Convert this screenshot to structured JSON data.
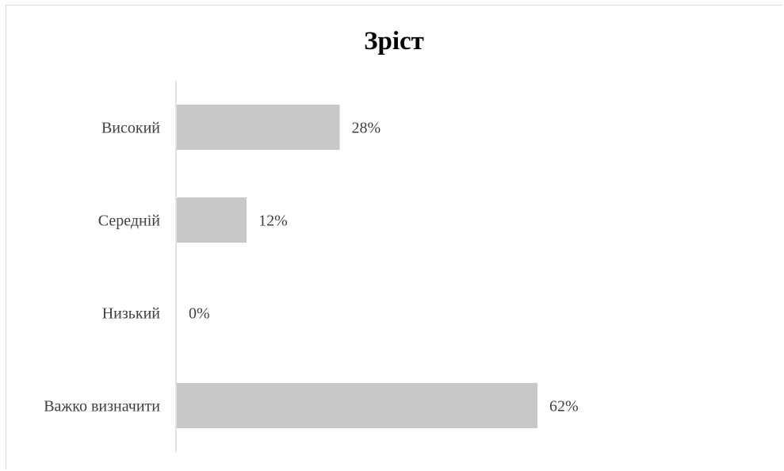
{
  "chart_data": {
    "type": "bar",
    "orientation": "horizontal",
    "title": "Зріст",
    "categories": [
      "Високий",
      "Середній",
      "Низький",
      "Важко визначити"
    ],
    "values": [
      28,
      12,
      0,
      62
    ],
    "data_labels": [
      "28%",
      "12%",
      "0%",
      "62%"
    ],
    "unit": "%",
    "xlim": [
      0,
      100
    ],
    "grid": false,
    "legend": "none",
    "colors": {
      "bar": "#c8c8c8",
      "axis": "#d9d9d9",
      "label": "#404040",
      "title": "#000000"
    }
  }
}
